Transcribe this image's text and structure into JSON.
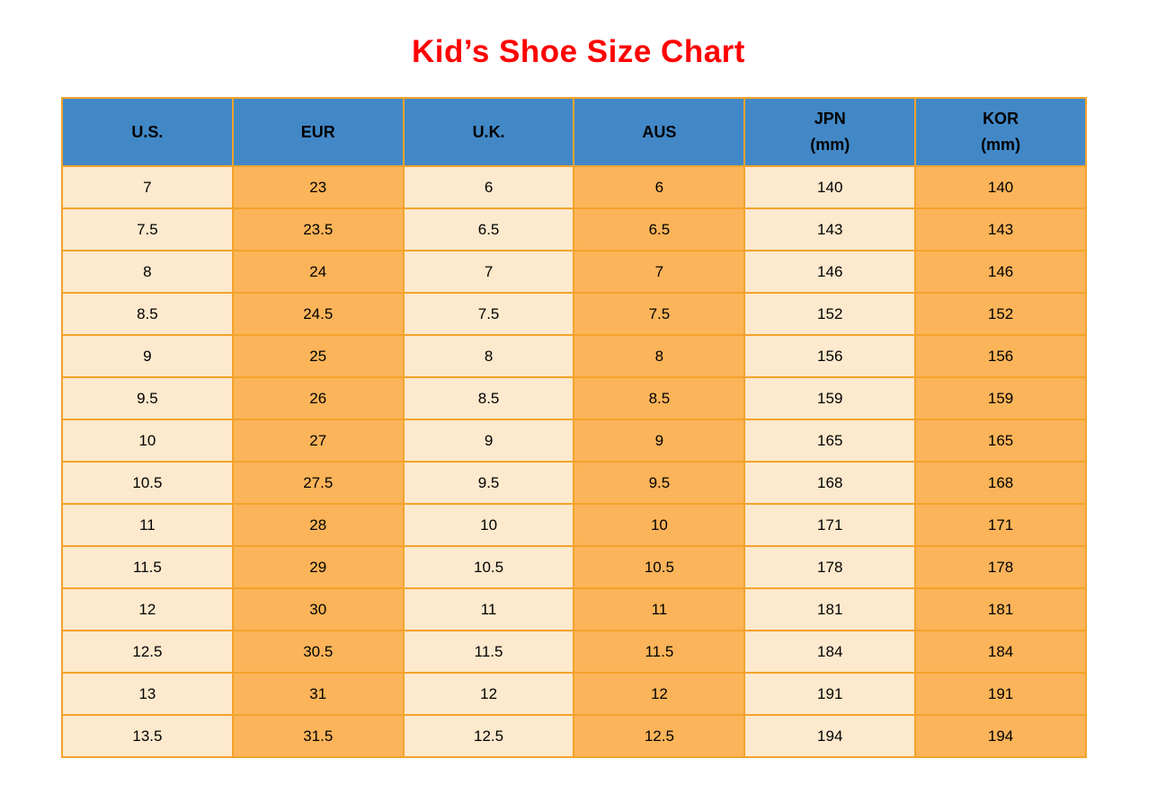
{
  "page": {
    "title": "Kid’s Shoe Size Chart"
  },
  "chart_data": {
    "type": "table",
    "title": "Kid’s Shoe Size Chart",
    "columns": [
      {
        "label": "U.S.",
        "sublabel": ""
      },
      {
        "label": "EUR",
        "sublabel": ""
      },
      {
        "label": "U.K.",
        "sublabel": ""
      },
      {
        "label": "AUS",
        "sublabel": ""
      },
      {
        "label": "JPN",
        "sublabel": "(mm)"
      },
      {
        "label": "KOR",
        "sublabel": "(mm)"
      }
    ],
    "rows": [
      [
        "7",
        "23",
        "6",
        "6",
        "140",
        "140"
      ],
      [
        "7.5",
        "23.5",
        "6.5",
        "6.5",
        "143",
        "143"
      ],
      [
        "8",
        "24",
        "7",
        "7",
        "146",
        "146"
      ],
      [
        "8.5",
        "24.5",
        "7.5",
        "7.5",
        "152",
        "152"
      ],
      [
        "9",
        "25",
        "8",
        "8",
        "156",
        "156"
      ],
      [
        "9.5",
        "26",
        "8.5",
        "8.5",
        "159",
        "159"
      ],
      [
        "10",
        "27",
        "9",
        "9",
        "165",
        "165"
      ],
      [
        "10.5",
        "27.5",
        "9.5",
        "9.5",
        "168",
        "168"
      ],
      [
        "11",
        "28",
        "10",
        "10",
        "171",
        "171"
      ],
      [
        "11.5",
        "29",
        "10.5",
        "10.5",
        "178",
        "178"
      ],
      [
        "12",
        "30",
        "11",
        "11",
        "181",
        "181"
      ],
      [
        "12.5",
        "30.5",
        "11.5",
        "11.5",
        "184",
        "184"
      ],
      [
        "13",
        "31",
        "12",
        "12",
        "191",
        "191"
      ],
      [
        "13.5",
        "31.5",
        "12.5",
        "12.5",
        "194",
        "194"
      ]
    ],
    "layout": {
      "legend": "none",
      "grid": "all-borders",
      "column_fill_pattern": [
        "light",
        "orange",
        "light",
        "orange",
        "light",
        "orange"
      ]
    }
  },
  "colors": {
    "title_red": "#FF0000",
    "header_blue": "#4288C7",
    "cell_light": "#FDE9CD",
    "cell_orange": "#FBB459",
    "border_orange": "#F3A32B",
    "text_black": "#000000"
  }
}
